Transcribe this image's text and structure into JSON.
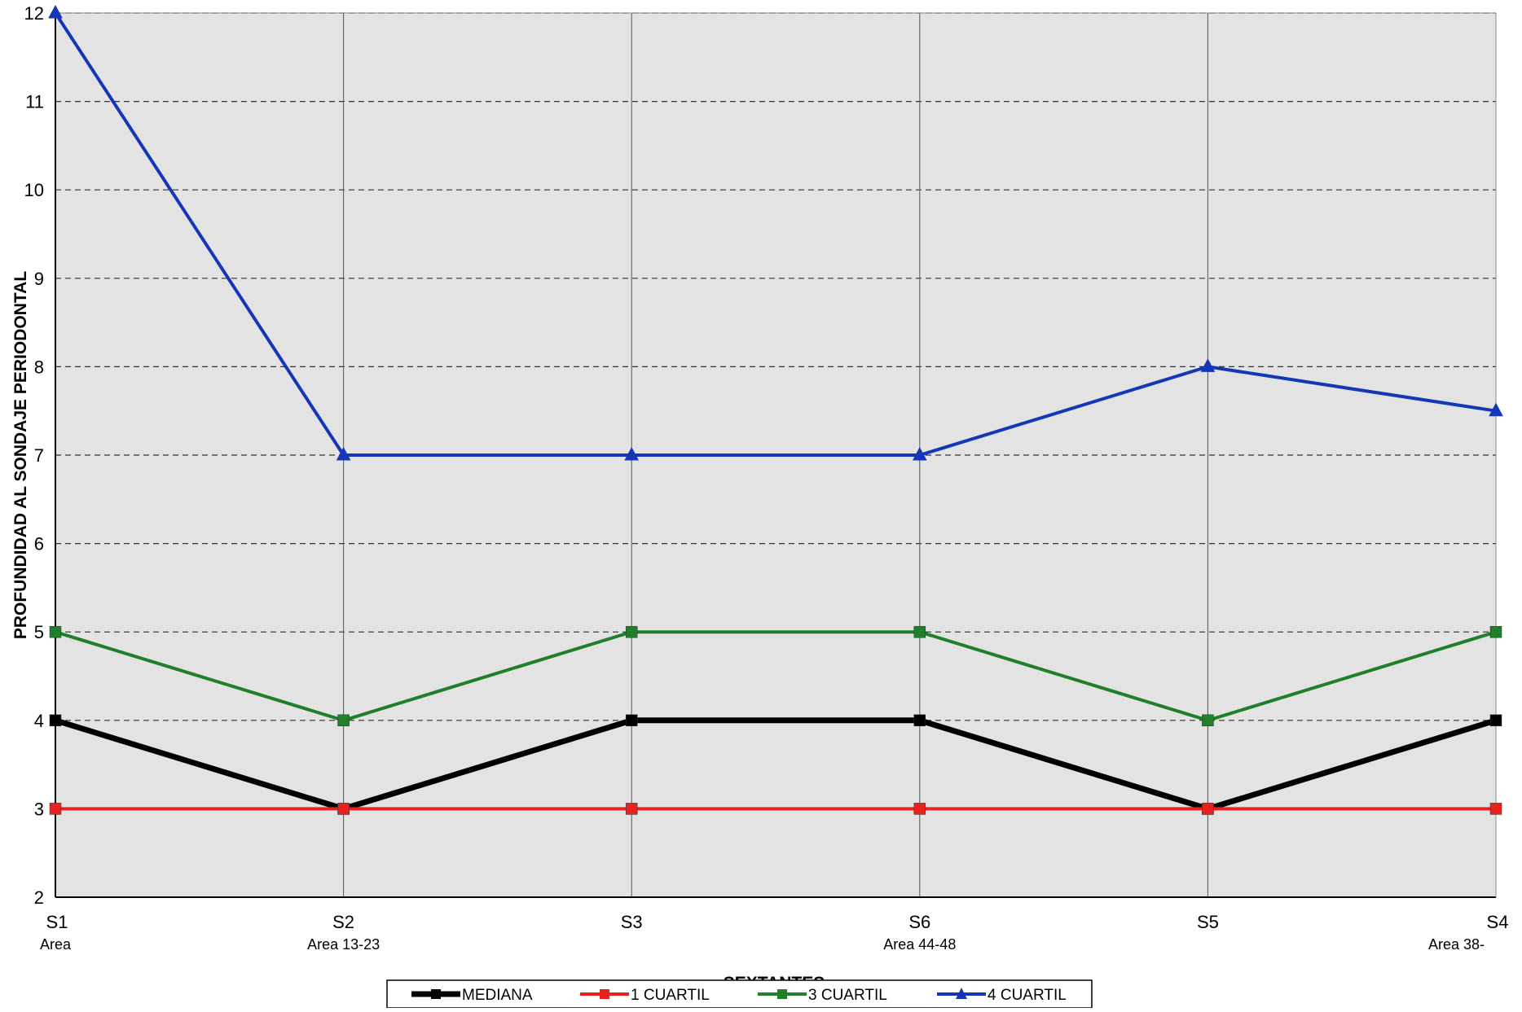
{
  "chart_data": {
    "type": "line",
    "title": "",
    "xlabel": "SEXTANTES",
    "ylabel": "PROFUNDIDAD AL SONDAJE PERIODONTAL",
    "ylim": [
      2,
      12
    ],
    "yticks": [
      2,
      3,
      4,
      5,
      6,
      7,
      8,
      9,
      10,
      11,
      12
    ],
    "categories": [
      "S1",
      "S2",
      "S3",
      "S6",
      "S5",
      "S4"
    ],
    "category_sublabels": [
      "Area",
      "Area 13-23",
      "",
      "Area 44-48",
      "",
      "Area 38-"
    ],
    "grid": "horizontal dashed and vertical solid",
    "legend_position": "bottom",
    "series": [
      {
        "name": "MEDIANA",
        "color": "#000000",
        "marker": "square",
        "values": [
          4,
          3,
          4,
          4,
          3,
          4
        ]
      },
      {
        "name": "1 CUARTIL",
        "color": "#e8231f",
        "marker": "square",
        "values": [
          3,
          3,
          3,
          3,
          3,
          3
        ]
      },
      {
        "name": "3 CUARTIL",
        "color": "#1f7f2a",
        "marker": "square",
        "values": [
          5,
          4,
          5,
          5,
          4,
          5
        ]
      },
      {
        "name": "4 CUARTIL",
        "color": "#1536b8",
        "marker": "triangle",
        "values": [
          12,
          7,
          7,
          7,
          8,
          7.5
        ]
      }
    ]
  }
}
